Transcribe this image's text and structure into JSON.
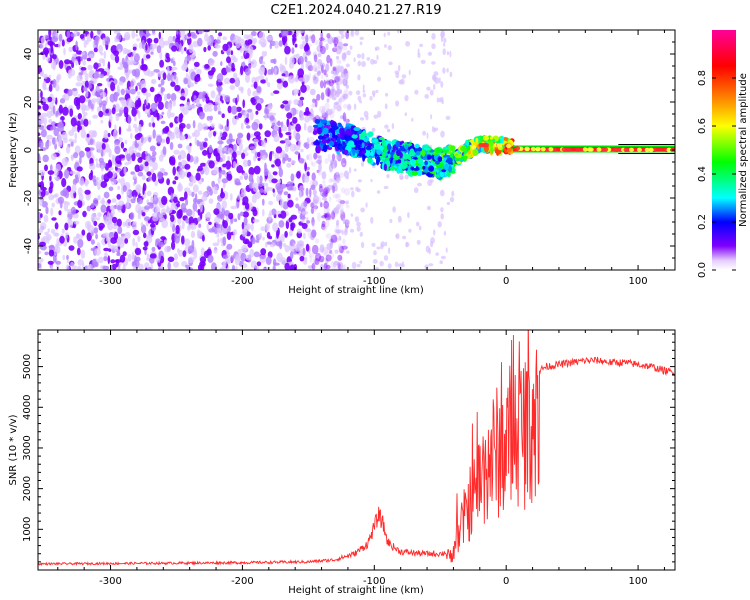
{
  "chart_data": [
    {
      "type": "heatmap",
      "title": "C2E1.2024.040.21.27.R19",
      "xlabel": "Height of straight line (km)",
      "ylabel": "Frequency (Hz)",
      "xlim": [
        -355,
        128
      ],
      "ylim": [
        -50,
        50
      ],
      "xticks": [
        -300,
        -200,
        -100,
        0,
        100
      ],
      "yticks": [
        -40,
        -20,
        0,
        20,
        40
      ],
      "colorbar": {
        "label": "Normalized spectral amplitude",
        "range": [
          0,
          1
        ],
        "ticks": [
          0.0,
          0.2,
          0.4,
          0.6,
          0.8
        ],
        "colors": [
          "#ffffff",
          "#d9b3ff",
          "#8000ff",
          "#0000ff",
          "#00ffff",
          "#00ff00",
          "#ffff00",
          "#ff8000",
          "#ff0000",
          "#ff00aa"
        ]
      },
      "signal_track": [
        [
          -140,
          6
        ],
        [
          -125,
          5
        ],
        [
          -110,
          3
        ],
        [
          -100,
          0
        ],
        [
          -90,
          -2
        ],
        [
          -80,
          -3
        ],
        [
          -70,
          -4
        ],
        [
          -60,
          -4
        ],
        [
          -50,
          -6
        ],
        [
          -40,
          -4
        ],
        [
          -30,
          0
        ],
        [
          -20,
          2
        ],
        [
          -10,
          2
        ],
        [
          0,
          2
        ],
        [
          10,
          0.5
        ],
        [
          30,
          0.3
        ],
        [
          60,
          0.2
        ],
        [
          90,
          0.1
        ],
        [
          125,
          0
        ]
      ],
      "track_amplitude": [
        [
          -140,
          0.25
        ],
        [
          -120,
          0.3
        ],
        [
          -100,
          0.35
        ],
        [
          -80,
          0.4
        ],
        [
          -60,
          0.45
        ],
        [
          -40,
          0.5
        ],
        [
          -20,
          0.7
        ],
        [
          0,
          0.8
        ],
        [
          20,
          0.9
        ],
        [
          60,
          0.95
        ],
        [
          125,
          0.95
        ]
      ],
      "noise_extent_km": [
        -355,
        -130
      ],
      "grid": false
    },
    {
      "type": "line",
      "xlabel": "Height of straight line (km)",
      "ylabel": "SNR (10 * v/v)",
      "xlim": [
        -355,
        128
      ],
      "ylim": [
        0,
        5900
      ],
      "xticks": [
        -300,
        -200,
        -100,
        0,
        100
      ],
      "yticks": [
        1000,
        2000,
        3000,
        4000,
        5000
      ],
      "grid": false,
      "series": [
        {
          "color": "#ff2a2a",
          "x": [
            -355,
            -300,
            -250,
            -200,
            -150,
            -130,
            -115,
            -105,
            -100,
            -97,
            -94,
            -90,
            -85,
            -80,
            -70,
            -60,
            -50,
            -42,
            -38,
            -33,
            -28,
            -22,
            -18,
            -13,
            -8,
            -4,
            0,
            4,
            8,
            12,
            16,
            20,
            25,
            30,
            40,
            50,
            60,
            70,
            80,
            90,
            100,
            110,
            120,
            128
          ],
          "y": [
            150,
            160,
            170,
            180,
            200,
            250,
            400,
            650,
            1050,
            1350,
            1200,
            700,
            550,
            450,
            420,
            400,
            400,
            450,
            900,
            1500,
            2100,
            2600,
            3000,
            3500,
            3700,
            3800,
            4000,
            4300,
            4500,
            4400,
            4600,
            4800,
            4900,
            5000,
            5050,
            5100,
            5150,
            5150,
            5100,
            5100,
            5050,
            5000,
            4900,
            4850
          ]
        }
      ]
    }
  ]
}
